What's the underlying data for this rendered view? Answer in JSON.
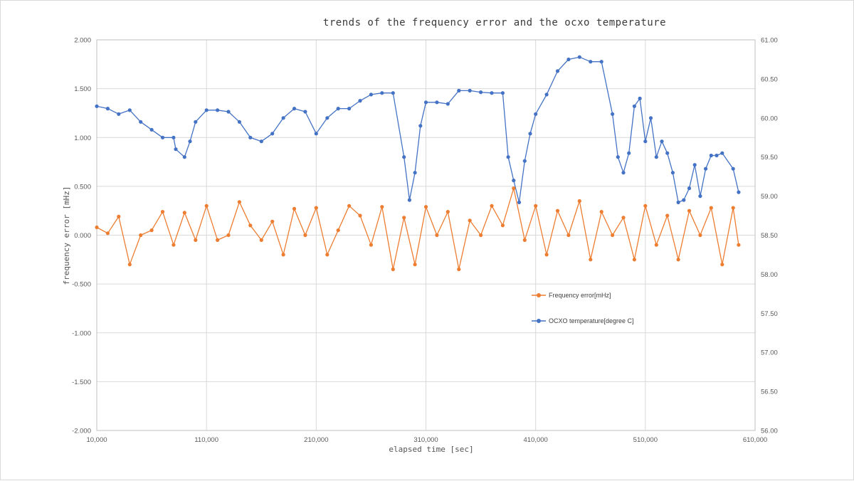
{
  "chart_data": {
    "type": "line",
    "title": "trends of the frequency error and the ocxo temperature",
    "xlabel": "elapsed time [sec]",
    "ylabel": "frequency error [mHz]",
    "y2label": "",
    "xlim": [
      10000,
      610000
    ],
    "ylim": [
      -2.0,
      2.0
    ],
    "y2lim": [
      56.0,
      61.0
    ],
    "x_ticks": [
      "10,000",
      "110,000",
      "210,000",
      "310,000",
      "410,000",
      "510,000",
      "610,000"
    ],
    "x_tick_values": [
      10000,
      110000,
      210000,
      310000,
      410000,
      510000,
      610000
    ],
    "y_ticks": [
      "2.000",
      "1.500",
      "1.000",
      "0.500",
      "0.000",
      "-0.500",
      "-1.000",
      "-1.500",
      "-2.000"
    ],
    "y_tick_values": [
      2.0,
      1.5,
      1.0,
      0.5,
      0.0,
      -0.5,
      -1.0,
      -1.5,
      -2.0
    ],
    "y2_ticks": [
      "61.00",
      "60.50",
      "60.00",
      "59.50",
      "59.00",
      "58.50",
      "58.00",
      "57.50",
      "57.00",
      "56.50",
      "56.00"
    ],
    "y2_tick_values": [
      61.0,
      60.5,
      60.0,
      59.5,
      59.0,
      58.5,
      58.0,
      57.5,
      57.0,
      56.5,
      56.0
    ],
    "grid": true,
    "legend_position": "lower-right-center",
    "series": [
      {
        "name": "Frequency error[mHz]",
        "axis": "left",
        "color": "#ED7D31",
        "x": [
          10000,
          20000,
          30000,
          40000,
          50000,
          60000,
          70000,
          80000,
          90000,
          100000,
          110000,
          120000,
          130000,
          140000,
          150000,
          160000,
          170000,
          180000,
          190000,
          200000,
          210000,
          220000,
          230000,
          240000,
          250000,
          260000,
          270000,
          280000,
          290000,
          300000,
          310000,
          320000,
          330000,
          340000,
          350000,
          360000,
          370000,
          380000,
          390000,
          400000,
          410000,
          420000,
          430000,
          440000,
          450000,
          460000,
          470000,
          480000,
          490000,
          500000,
          510000,
          520000,
          530000,
          540000,
          550000,
          560000,
          570000,
          580000,
          590000,
          595000
        ],
        "y": [
          0.08,
          0.02,
          0.19,
          -0.3,
          0.0,
          0.05,
          0.24,
          -0.1,
          0.23,
          -0.05,
          0.3,
          -0.05,
          0.0,
          0.34,
          0.1,
          -0.05,
          0.14,
          -0.2,
          0.27,
          0.0,
          0.28,
          -0.2,
          0.05,
          0.3,
          0.2,
          -0.1,
          0.29,
          -0.35,
          0.18,
          -0.3,
          0.29,
          0.0,
          0.24,
          -0.35,
          0.15,
          0.0,
          0.3,
          0.1,
          0.48,
          -0.05,
          0.3,
          -0.2,
          0.25,
          0.0,
          0.35,
          -0.25,
          0.24,
          0.0,
          0.18,
          -0.25,
          0.3,
          -0.1,
          0.2,
          -0.25,
          0.25,
          0.0,
          0.28,
          -0.3,
          0.28,
          -0.1
        ]
      },
      {
        "name": "OCXO temperature[degree C]",
        "axis": "right",
        "color": "#4472C4",
        "x": [
          10000,
          20000,
          30000,
          40000,
          50000,
          60000,
          70000,
          80000,
          82000,
          90000,
          95000,
          100000,
          110000,
          120000,
          130000,
          140000,
          150000,
          160000,
          170000,
          180000,
          190000,
          200000,
          210000,
          220000,
          230000,
          240000,
          250000,
          260000,
          270000,
          280000,
          290000,
          295000,
          300000,
          305000,
          310000,
          320000,
          330000,
          340000,
          350000,
          360000,
          370000,
          380000,
          385000,
          390000,
          395000,
          400000,
          405000,
          410000,
          420000,
          430000,
          440000,
          450000,
          460000,
          470000,
          480000,
          485000,
          490000,
          495000,
          500000,
          505000,
          510000,
          515000,
          520000,
          525000,
          530000,
          535000,
          540000,
          545000,
          550000,
          555000,
          560000,
          565000,
          570000,
          575000,
          580000,
          590000,
          595000
        ],
        "y": [
          60.15,
          60.12,
          60.05,
          60.1,
          59.95,
          59.85,
          59.75,
          59.75,
          59.6,
          59.5,
          59.7,
          59.95,
          60.1,
          60.1,
          60.08,
          59.95,
          59.75,
          59.7,
          59.8,
          60.0,
          60.12,
          60.08,
          59.8,
          60.0,
          60.12,
          60.12,
          60.22,
          60.3,
          60.32,
          60.32,
          59.5,
          58.95,
          59.3,
          59.9,
          60.2,
          60.2,
          60.18,
          60.35,
          60.35,
          60.33,
          60.32,
          60.32,
          59.5,
          59.2,
          58.92,
          59.45,
          59.8,
          60.05,
          60.3,
          60.6,
          60.75,
          60.78,
          60.72,
          60.72,
          60.05,
          59.5,
          59.3,
          59.55,
          60.15,
          60.25,
          59.7,
          60.0,
          59.5,
          59.7,
          59.55,
          59.3,
          58.92,
          58.95,
          59.1,
          59.4,
          59.0,
          59.35,
          59.52,
          59.52,
          59.55,
          59.35,
          59.05
        ]
      }
    ]
  }
}
